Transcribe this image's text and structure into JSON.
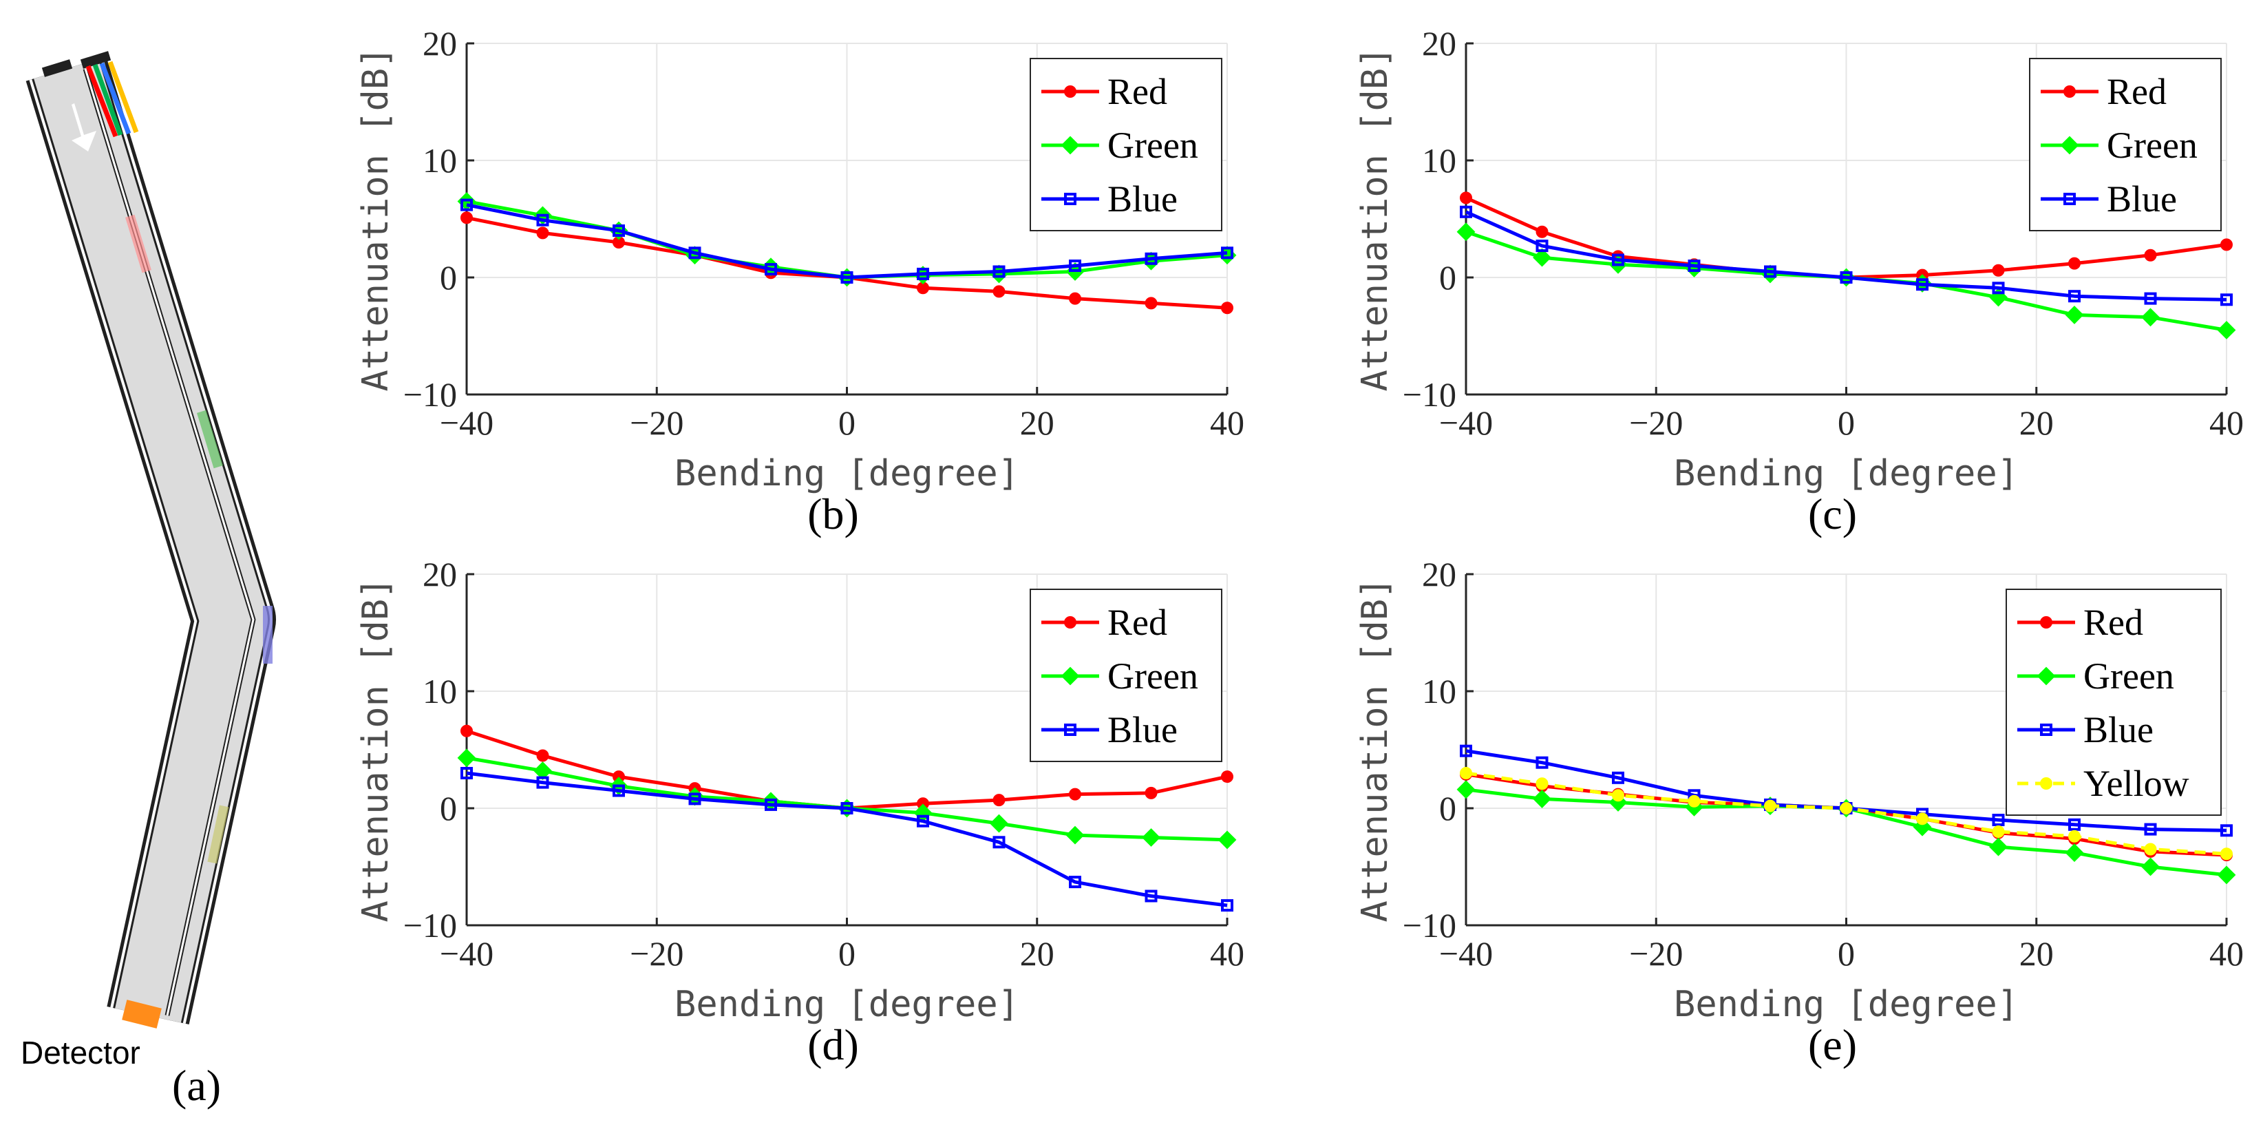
{
  "colors": {
    "red": "#ff0000",
    "green": "#00ff00",
    "blue": "#0000ff",
    "yellow": "#ffff00",
    "detector": "#ff8c1a",
    "fiber": "#dcdcdc"
  },
  "diagram": {
    "detector_label": "Detector",
    "panel_label": "(a)"
  },
  "chart_data": [
    {
      "type": "line",
      "panel_label": "(b)",
      "xlabel": "Bending [degree]",
      "ylabel": "Attenuation [dB]",
      "xlim": [
        -40,
        40
      ],
      "ylim": [
        -10,
        20
      ],
      "xticks": [
        -40,
        -20,
        0,
        20,
        40
      ],
      "yticks": [
        -10,
        0,
        10,
        20
      ],
      "x": [
        -40,
        -32,
        -24,
        -16,
        -8,
        0,
        8,
        16,
        24,
        32,
        40
      ],
      "legend_position": "top-right",
      "series": [
        {
          "name": "Red",
          "color": "#ff0000",
          "marker": "circle",
          "values": [
            5.1,
            3.8,
            3.0,
            1.9,
            0.4,
            0.0,
            -0.9,
            -1.2,
            -1.8,
            -2.2,
            -2.6
          ]
        },
        {
          "name": "Green",
          "color": "#00ff00",
          "marker": "diamond",
          "values": [
            6.5,
            5.3,
            4.0,
            1.9,
            0.9,
            0.0,
            0.2,
            0.3,
            0.5,
            1.4,
            1.9
          ]
        },
        {
          "name": "Blue",
          "color": "#0000ff",
          "marker": "square",
          "values": [
            6.2,
            4.9,
            4.0,
            2.1,
            0.7,
            0.0,
            0.3,
            0.5,
            1.0,
            1.6,
            2.1
          ]
        }
      ]
    },
    {
      "type": "line",
      "panel_label": "(c)",
      "xlabel": "Bending [degree]",
      "ylabel": "Attenuation [dB]",
      "xlim": [
        -40,
        40
      ],
      "ylim": [
        -10,
        20
      ],
      "xticks": [
        -40,
        -20,
        0,
        20,
        40
      ],
      "yticks": [
        -10,
        0,
        10,
        20
      ],
      "x": [
        -40,
        -32,
        -24,
        -16,
        -8,
        0,
        8,
        16,
        24,
        32,
        40
      ],
      "legend_position": "top-right",
      "series": [
        {
          "name": "Red",
          "color": "#ff0000",
          "marker": "circle",
          "values": [
            6.8,
            3.9,
            1.8,
            1.1,
            0.4,
            0.0,
            0.2,
            0.6,
            1.2,
            1.9,
            2.8
          ]
        },
        {
          "name": "Green",
          "color": "#00ff00",
          "marker": "diamond",
          "values": [
            3.9,
            1.7,
            1.1,
            0.8,
            0.3,
            0.0,
            -0.5,
            -1.7,
            -3.2,
            -3.4,
            -4.5
          ]
        },
        {
          "name": "Blue",
          "color": "#0000ff",
          "marker": "square",
          "values": [
            5.6,
            2.7,
            1.5,
            1.0,
            0.5,
            0.0,
            -0.6,
            -0.9,
            -1.6,
            -1.8,
            -1.9
          ]
        }
      ]
    },
    {
      "type": "line",
      "panel_label": "(d)",
      "xlabel": "Bending [degree]",
      "ylabel": "Attenuation [dB]",
      "xlim": [
        -40,
        40
      ],
      "ylim": [
        -10,
        20
      ],
      "xticks": [
        -40,
        -20,
        0,
        20,
        40
      ],
      "yticks": [
        -10,
        0,
        10,
        20
      ],
      "x": [
        -40,
        -32,
        -24,
        -16,
        -8,
        0,
        8,
        16,
        24,
        32,
        40
      ],
      "legend_position": "top-right",
      "series": [
        {
          "name": "Red",
          "color": "#ff0000",
          "marker": "circle",
          "values": [
            6.6,
            4.5,
            2.7,
            1.7,
            0.6,
            0.0,
            0.4,
            0.7,
            1.2,
            1.3,
            2.7
          ]
        },
        {
          "name": "Green",
          "color": "#00ff00",
          "marker": "diamond",
          "values": [
            4.3,
            3.2,
            1.9,
            1.0,
            0.6,
            0.0,
            -0.4,
            -1.3,
            -2.3,
            -2.5,
            -2.7
          ]
        },
        {
          "name": "Blue",
          "color": "#0000ff",
          "marker": "square",
          "values": [
            3.0,
            2.2,
            1.5,
            0.8,
            0.3,
            0.0,
            -1.1,
            -2.9,
            -6.3,
            -7.5,
            -8.3
          ]
        }
      ]
    },
    {
      "type": "line",
      "panel_label": "(e)",
      "xlabel": "Bending [degree]",
      "ylabel": "Attenuation [dB]",
      "xlim": [
        -40,
        40
      ],
      "ylim": [
        -10,
        20
      ],
      "xticks": [
        -40,
        -20,
        0,
        20,
        40
      ],
      "yticks": [
        -10,
        0,
        10,
        20
      ],
      "x": [
        -40,
        -32,
        -24,
        -16,
        -8,
        0,
        8,
        16,
        24,
        32,
        40
      ],
      "legend_position": "top-right",
      "series": [
        {
          "name": "Red",
          "color": "#ff0000",
          "marker": "circle",
          "values": [
            2.9,
            1.9,
            1.2,
            0.5,
            0.3,
            0.0,
            -0.9,
            -2.1,
            -2.6,
            -3.7,
            -4.0
          ]
        },
        {
          "name": "Green",
          "color": "#00ff00",
          "marker": "diamond",
          "values": [
            1.6,
            0.8,
            0.5,
            0.1,
            0.2,
            0.0,
            -1.6,
            -3.3,
            -3.8,
            -5.0,
            -5.7
          ]
        },
        {
          "name": "Blue",
          "color": "#0000ff",
          "marker": "square",
          "values": [
            4.9,
            3.9,
            2.6,
            1.1,
            0.3,
            0.0,
            -0.5,
            -1.0,
            -1.4,
            -1.8,
            -1.9
          ]
        },
        {
          "name": "Yellow",
          "color": "#ffff00",
          "marker": "circle",
          "dashed": true,
          "values": [
            3.0,
            2.1,
            1.1,
            0.6,
            0.2,
            0.0,
            -0.9,
            -2.0,
            -2.4,
            -3.5,
            -3.9
          ]
        }
      ]
    }
  ]
}
